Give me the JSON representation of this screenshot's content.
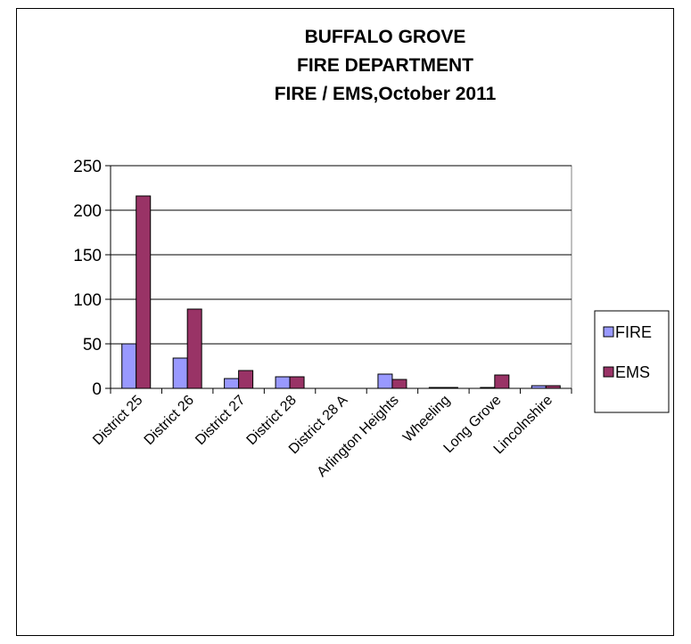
{
  "chart_data": {
    "type": "bar",
    "title": [
      "BUFFALO GROVE",
      "FIRE DEPARTMENT",
      "FIRE / EMS,October 2011"
    ],
    "categories": [
      "District 25",
      "District 26",
      "District 27",
      "District 28",
      "District 28 A",
      "Arlington Heights",
      "Wheeling",
      "Long Grove",
      "Lincolnshire"
    ],
    "series": [
      {
        "name": "FIRE",
        "values": [
          50,
          34,
          11,
          13,
          0,
          16,
          1,
          1,
          3
        ],
        "color": "#9999ff"
      },
      {
        "name": "EMS",
        "values": [
          216,
          89,
          20,
          13,
          0,
          10,
          1,
          15,
          3
        ],
        "color": "#993366"
      }
    ],
    "yticks": [
      0,
      50,
      100,
      150,
      200,
      250
    ],
    "ylim": [
      0,
      250
    ],
    "grid": true,
    "legend": "right"
  }
}
